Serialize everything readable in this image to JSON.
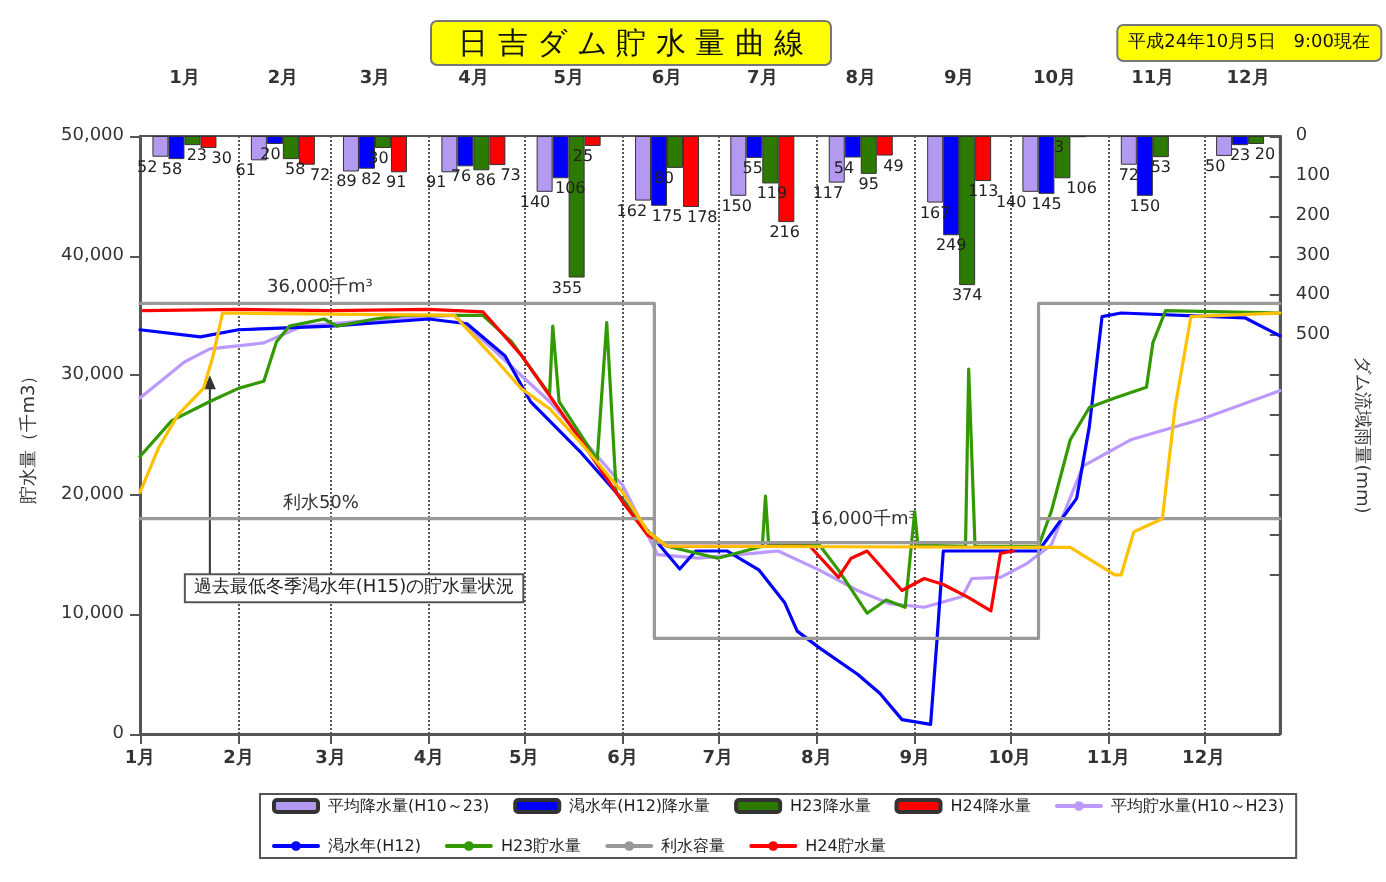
{
  "chart_data": {
    "type": "line",
    "title": "日 吉 ダ ム 貯 水 量 曲 線",
    "subtitle": "平成24年10月5日　9:00現在",
    "ylabel": "貯水量（千m3）",
    "y2label": "ダム流域雨量(mm)",
    "xlim": [
      "--01-01",
      "--12-25"
    ],
    "xticks": [
      {
        "value": "--01-01",
        "label": "1月"
      },
      {
        "value": "--02-01",
        "label": "2月"
      },
      {
        "value": "--03-01",
        "label": "3月"
      },
      {
        "value": "--04-01",
        "label": "4月"
      },
      {
        "value": "--05-01",
        "label": "5月"
      },
      {
        "value": "--06-01",
        "label": "6月"
      },
      {
        "value": "--07-01",
        "label": "7月"
      },
      {
        "value": "--08-01",
        "label": "8月"
      },
      {
        "value": "--09-01",
        "label": "9月"
      },
      {
        "value": "--10-01",
        "label": "10月"
      },
      {
        "value": "--11-01",
        "label": "11月"
      },
      {
        "value": "--12-01",
        "label": "12月"
      }
    ],
    "x2lim": [
      "--01-01",
      "--12-25"
    ],
    "x2ticks": [
      {
        "value": "--01-15",
        "label": "1月"
      },
      {
        "value": "--02-15",
        "label": "2月"
      },
      {
        "value": "--03-15",
        "label": "3月"
      },
      {
        "value": "--04-15",
        "label": "4月"
      },
      {
        "value": "--05-15",
        "label": "5月"
      },
      {
        "value": "--06-15",
        "label": "6月"
      },
      {
        "value": "--07-15",
        "label": "7月"
      },
      {
        "value": "--08-15",
        "label": "8月"
      },
      {
        "value": "--09-15",
        "label": "9月"
      },
      {
        "value": "--10-15",
        "label": "10月"
      },
      {
        "value": "--11-15",
        "label": "11月"
      },
      {
        "value": "--12-15",
        "label": "12月"
      }
    ],
    "ylim": [
      0,
      50000
    ],
    "yticks": [
      0,
      {
        "value": 10000,
        "label": "10,000"
      },
      {
        "value": 20000,
        "label": "20,000"
      },
      {
        "value": 30000,
        "label": "30,000"
      },
      {
        "value": 40000,
        "label": "40,000"
      },
      {
        "value": 50000,
        "label": "50,000"
      }
    ],
    "y2lim": [
      1500,
      0
    ],
    "y2ticks": [
      0,
      100,
      200,
      300,
      400,
      500,
      {
        "value": 600,
        "label": null
      },
      {
        "value": 700,
        "label": null
      },
      {
        "value": 800,
        "label": null
      },
      {
        "value": 900,
        "label": null
      },
      {
        "value": 1000,
        "label": null
      },
      {
        "value": 1100,
        "label": null
      }
    ],
    "grid": "x",
    "legend": "bottom",
    "marker": "none",
    "annotations": [
      {
        "text": "36,000千m³",
        "x": "--02-10",
        "y": 36000
      },
      {
        "text": "利水50%",
        "x": "--02-15",
        "y": 18000
      },
      {
        "text": "16,000千m³",
        "x": "--07-30",
        "y": 16000
      },
      {
        "text": "過去最低冬季渇水年(H15)の貯水量状況",
        "x": "--01-23",
        "y": 30000
      }
    ],
    "series": [
      {
        "name": "平均降水量(H10～23)",
        "type": "bar",
        "axis": "y2",
        "color": "#b399f0",
        "x": [
          "--01-15",
          "--02-15",
          "--03-15",
          "--04-15",
          "--05-15",
          "--06-15",
          "--07-15",
          "--08-15",
          "--09-15",
          "--10-15",
          "--11-15",
          "--12-15"
        ],
        "values": [
          52,
          61,
          89,
          91,
          140,
          162,
          150,
          117,
          167,
          140,
          72,
          50
        ],
        "value_labels": [
          "52",
          "61",
          "89",
          "91",
          "140",
          "162",
          "150",
          "117",
          "167",
          "140",
          "72",
          "50"
        ]
      },
      {
        "name": "渇水年(H12)降水量",
        "type": "bar",
        "axis": "y2",
        "color": "#0000ff",
        "x": [
          "--01-15",
          "--02-15",
          "--03-15",
          "--04-15",
          "--05-15",
          "--06-15",
          "--07-15",
          "--08-15",
          "--09-15",
          "--10-15",
          "--11-15",
          "--12-15"
        ],
        "values": [
          58,
          20,
          82,
          76,
          106,
          175,
          55,
          54,
          249,
          145,
          150,
          23
        ],
        "value_labels": [
          "58",
          "20",
          "82",
          "76",
          "106",
          "175",
          "55",
          "54",
          "249",
          "145",
          "150",
          "23"
        ]
      },
      {
        "name": "H23降水量",
        "type": "bar",
        "axis": "y2",
        "color": "#2d7a00",
        "x": [
          "--01-15",
          "--02-15",
          "--03-15",
          "--04-15",
          "--05-15",
          "--06-15",
          "--07-15",
          "--08-15",
          "--09-15",
          "--10-15",
          "--11-15",
          "--12-15"
        ],
        "values": [
          23,
          58,
          30,
          86,
          355,
          80,
          119,
          95,
          374,
          106,
          53,
          20
        ],
        "value_labels": [
          "23",
          "58",
          "30",
          "86",
          "355",
          "80",
          "119",
          "95",
          "374",
          "106",
          "53",
          "20"
        ]
      },
      {
        "name": "H24降水量",
        "type": "bar",
        "axis": "y2",
        "color": "#ff0000",
        "x": [
          "--01-15",
          "--02-15",
          "--03-15",
          "--04-15",
          "--05-15",
          "--06-15",
          "--07-15",
          "--08-15",
          "--09-15",
          "--10-15"
        ],
        "values": [
          30,
          72,
          91,
          73,
          25,
          178,
          216,
          49,
          113,
          3
        ],
        "value_labels": [
          "30",
          "72",
          "91",
          "73",
          "25",
          "178",
          "216",
          "49",
          "113",
          "3"
        ]
      },
      {
        "name": "平均貯水量(H10～H23)",
        "color": "#bb99ff",
        "x": [
          "--01-01",
          "--01-15",
          "--01-23",
          "--02-09",
          "--02-21",
          "--03-19",
          "--04-09",
          "--04-21",
          "--05-09",
          "--06-01",
          "--06-12",
          "--06-25",
          "--07-20",
          "--08-02",
          "--08-14",
          "--08-24",
          "--09-04",
          "--09-16",
          "--09-19",
          "--09-28",
          "--10-06",
          "--10-14",
          "--10-24",
          "--11-08",
          "--11-30",
          "--12-25"
        ],
        "values": [
          28100,
          31100,
          32200,
          32700,
          34100,
          34700,
          35000,
          32200,
          27800,
          20800,
          15000,
          14700,
          15300,
          13700,
          12000,
          10900,
          10600,
          11500,
          13000,
          13100,
          14200,
          15800,
          22400,
          24600,
          26300,
          28700
        ]
      },
      {
        "name": "渇水年(H12)",
        "color": "#0000ff",
        "x": [
          "--01-01",
          "--01-20",
          "--02-01",
          "--03-01",
          "--04-01",
          "--04-13",
          "--04-25",
          "--05-03",
          "--05-19",
          "--06-01",
          "--06-11",
          "--06-19",
          "--06-24",
          "--07-04",
          "--07-14",
          "--07-22",
          "--07-26",
          "--08-02",
          "--08-14",
          "--08-21",
          "--08-28",
          "--09-06",
          "--09-08",
          "--09-10",
          "--10-10",
          "--10-22",
          "--10-26",
          "--10-30",
          "--11-05",
          "--12-14",
          "--12-25"
        ],
        "values": [
          33800,
          33200,
          33800,
          34100,
          34700,
          34300,
          31600,
          27800,
          23500,
          19600,
          16300,
          13800,
          15300,
          15300,
          13700,
          11000,
          8600,
          7200,
          5000,
          3400,
          1200,
          800,
          7800,
          15300,
          15300,
          19700,
          25700,
          34900,
          35200,
          34800,
          33300
        ]
      },
      {
        "name": "H23貯水量",
        "color": "#339900",
        "x": [
          "--01-01",
          "--01-11",
          "--01-23",
          "--02-01",
          "--02-09",
          "--02-13",
          "--02-17",
          "--02-28",
          "--03-03",
          "--03-15",
          "--03-24",
          "--04-18",
          "--04-27",
          "--05-09",
          "--05-10",
          "--05-12",
          "--05-24",
          "--05-27",
          "--05-30",
          "--06-09",
          "--06-15",
          "--07-01",
          "--07-15",
          "--07-16",
          "--07-17",
          "--08-02",
          "--08-08",
          "--08-17",
          "--08-23",
          "--08-29",
          "--09-01",
          "--09-02",
          "--09-17",
          "--09-18",
          "--09-20",
          "--10-10",
          "--10-14",
          "--10-20",
          "--10-26",
          "--11-03",
          "--11-13",
          "--11-15",
          "--11-19",
          "--12-25"
        ],
        "values": [
          23200,
          26200,
          27800,
          28900,
          29500,
          32800,
          34100,
          34700,
          34100,
          34700,
          35000,
          35000,
          32800,
          28400,
          34100,
          27800,
          22900,
          34400,
          20200,
          16900,
          15700,
          14700,
          15700,
          19900,
          15800,
          15800,
          13700,
          10100,
          11200,
          10600,
          18600,
          15800,
          15700,
          30500,
          15700,
          15700,
          18600,
          24600,
          27300,
          28100,
          29000,
          32700,
          35400,
          35200
        ]
      },
      {
        "name": "利水容量",
        "color": "#999999",
        "x": [
          "--01-01",
          "--06-11",
          "--06-11",
          "--10-10",
          "--10-10",
          "--12-25"
        ],
        "values": [
          36000,
          36000,
          8000,
          8000,
          36000,
          36000
        ]
      },
      {
        "name": "H24貯水量",
        "color": "#ff0000",
        "x": [
          "--01-02",
          "--02-01",
          "--03-01",
          "--04-01",
          "--04-18",
          "--04-30",
          "--05-19",
          "--06-01",
          "--06-09",
          "--06-15",
          "--07-30",
          "--08-08",
          "--08-12",
          "--08-17",
          "--08-28",
          "--09-04",
          "--09-10",
          "--09-18",
          "--09-25",
          "--09-28",
          "--10-02"
        ],
        "values": [
          35400,
          35500,
          35400,
          35500,
          35300,
          31700,
          24500,
          19400,
          16600,
          15700,
          15700,
          13100,
          14700,
          15300,
          12000,
          13000,
          12500,
          11400,
          10300,
          15100,
          15300
        ]
      },
      {
        "color": "#999999",
        "x": [
          "--01-01",
          "--06-11",
          "--06-11",
          "--10-10",
          "--10-10",
          "--12-25"
        ],
        "values": [
          18000,
          18000,
          16000,
          16000,
          18000,
          18000
        ]
      },
      {
        "color": "#ffc000",
        "x": [
          "--01-01",
          "--01-07",
          "--01-13",
          "--01-21",
          "--01-24",
          "--01-27",
          "--04-09",
          "--04-21",
          "--04-30",
          "--05-09",
          "--05-19",
          "--06-01",
          "--06-09",
          "--06-15",
          "--10-20",
          "--11-03",
          "--11-05",
          "--11-09",
          "--11-18",
          "--11-22",
          "--11-27",
          "--12-25"
        ],
        "values": [
          20200,
          24000,
          26700,
          28900,
          31600,
          35200,
          35000,
          31600,
          28900,
          27200,
          24300,
          20200,
          16900,
          15700,
          15600,
          13300,
          13300,
          16900,
          18000,
          27300,
          34900,
          35200
        ]
      }
    ]
  }
}
